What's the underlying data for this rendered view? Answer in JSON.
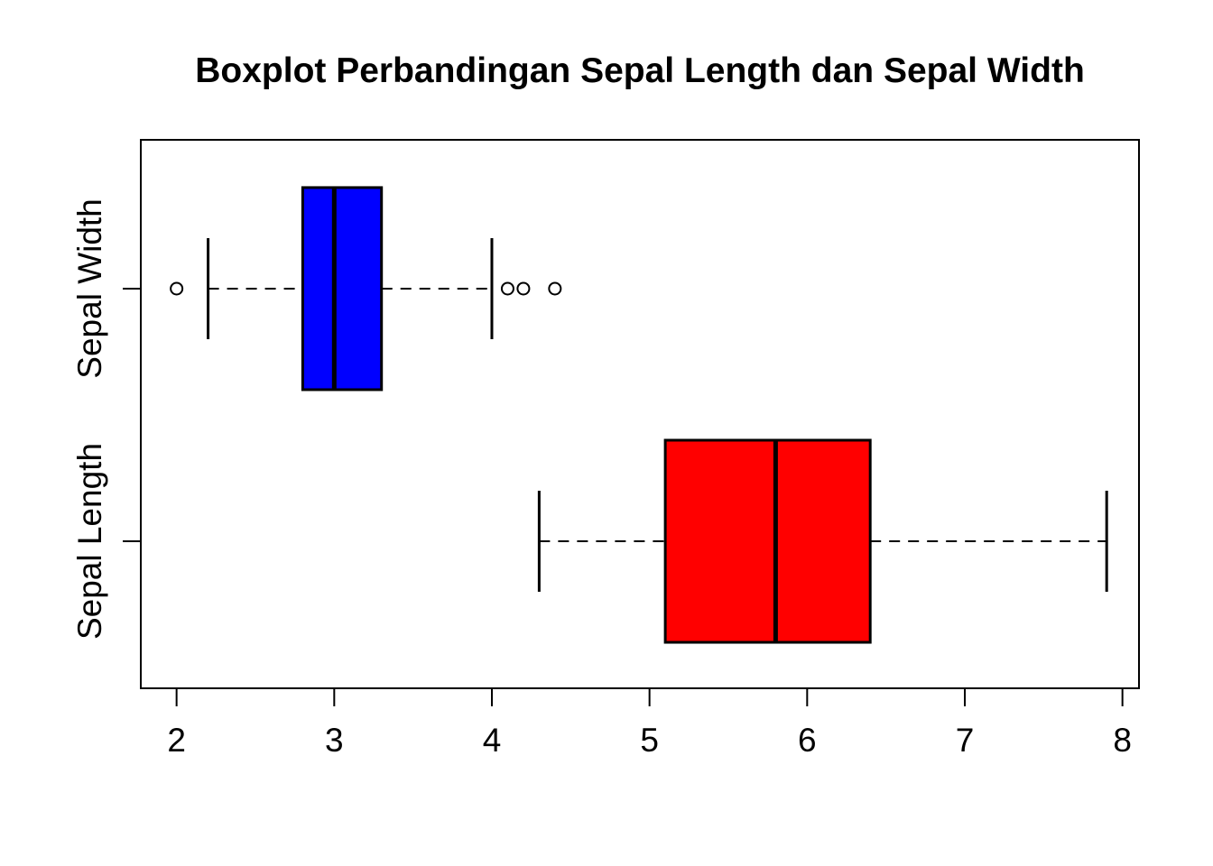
{
  "title": "Boxplot Perbandingan Sepal Length dan Sepal Width",
  "styles": {
    "background": "#FFFFFF",
    "stroke": "#000000",
    "sepal_length_fill": "#FF0000",
    "sepal_width_fill": "#0000FF"
  },
  "chart_data": {
    "type": "boxplot",
    "orientation": "horizontal",
    "title": "Boxplot Perbandingan Sepal Length dan Sepal Width",
    "x_axis": {
      "ticks": [
        2,
        3,
        4,
        5,
        6,
        7,
        8
      ],
      "range": [
        1.773,
        8.105
      ],
      "label": ""
    },
    "y_axis": {
      "range": [
        0.418,
        2.589
      ],
      "label": ""
    },
    "grid": "off",
    "legend": "none",
    "box_width": 0.8,
    "staple_width": 0.4,
    "series": [
      {
        "label": "Sepal Length",
        "position": 1,
        "color": "#FF0000",
        "whisker_low": 4.3,
        "q1": 5.1,
        "median": 5.8,
        "q3": 6.4,
        "whisker_high": 7.9,
        "outliers": []
      },
      {
        "label": "Sepal Width",
        "position": 2,
        "color": "#0000FF",
        "whisker_low": 2.2,
        "q1": 2.8,
        "median": 3.0,
        "q3": 3.3,
        "whisker_high": 4.0,
        "outliers": [
          2.0,
          4.1,
          4.2,
          4.4
        ]
      }
    ]
  }
}
